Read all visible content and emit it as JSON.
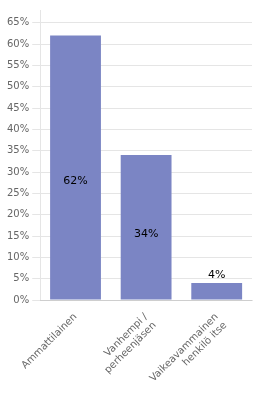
{
  "chart_data": {
    "type": "bar",
    "categories": [
      "Ammattilainen",
      "Vanhempi /\nperheenjäsen",
      "Vaikeavammainen\nhenkilö itse"
    ],
    "values": [
      62,
      34,
      4
    ],
    "value_labels": [
      "62%",
      "34%",
      "4%"
    ],
    "data_labels": true,
    "color": "#7b85c4",
    "ylim": [
      0,
      68
    ],
    "yticks": [
      {
        "value": 0,
        "label": "0%"
      },
      {
        "value": 5,
        "label": "5%"
      },
      {
        "value": 10,
        "label": "10%"
      },
      {
        "value": 15,
        "label": "15%"
      },
      {
        "value": 20,
        "label": "20%"
      },
      {
        "value": 25,
        "label": "25%"
      },
      {
        "value": 30,
        "label": "30%"
      },
      {
        "value": 35,
        "label": "35%"
      },
      {
        "value": 40,
        "label": "40%"
      },
      {
        "value": 45,
        "label": "45%"
      },
      {
        "value": 50,
        "label": "50%"
      },
      {
        "value": 55,
        "label": "55%"
      },
      {
        "value": 60,
        "label": "60%"
      },
      {
        "value": 65,
        "label": "65%"
      }
    ],
    "grid": true
  }
}
